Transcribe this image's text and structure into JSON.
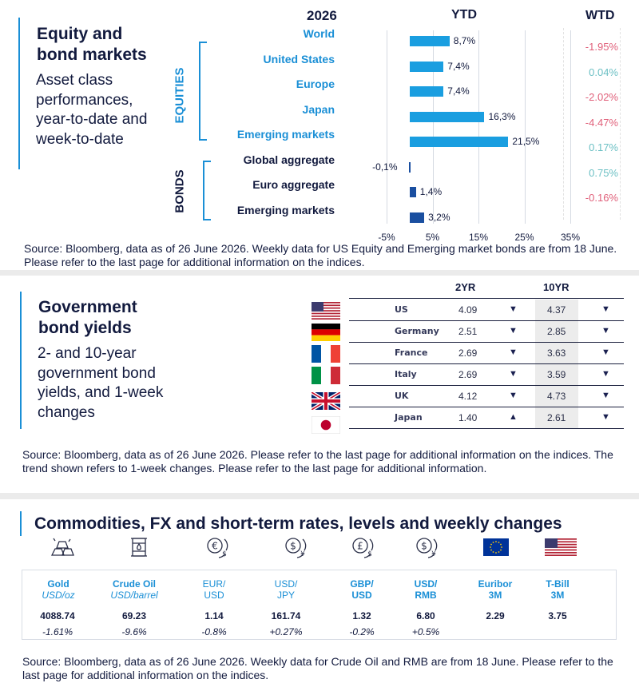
{
  "equity": {
    "title_line1": "Equity and",
    "title_line2": "bond markets",
    "subtitle_lines": [
      "Asset class",
      "performances,",
      "year-to-date and",
      "week-to-date"
    ],
    "year_label": "2026",
    "ytd_label": "YTD",
    "wtd_label": "WTD",
    "equities_label": "EQUITIES",
    "bonds_label": "BONDS",
    "rows": [
      {
        "label": "World",
        "group": "equities",
        "ytd": 8.7,
        "ytd_text": "8,7%",
        "wtd": "-1.95%",
        "wtd_color": "#e0607a"
      },
      {
        "label": "United States",
        "group": "equities",
        "ytd": 7.4,
        "ytd_text": "7,4%",
        "wtd": "0.04%",
        "wtd_color": "#6cc0c4"
      },
      {
        "label": "Europe",
        "group": "equities",
        "ytd": 7.4,
        "ytd_text": "7,4%",
        "wtd": "-2.02%",
        "wtd_color": "#e0607a"
      },
      {
        "label": "Japan",
        "group": "equities",
        "ytd": 16.3,
        "ytd_text": "16,3%",
        "wtd": "-4.47%",
        "wtd_color": "#e0607a"
      },
      {
        "label": "Emerging  markets",
        "group": "equities",
        "ytd": 21.5,
        "ytd_text": "21,5%",
        "wtd": "0.17%",
        "wtd_color": "#6cc0c4"
      },
      {
        "label": "Global  aggregate",
        "group": "bonds",
        "ytd": -0.1,
        "ytd_text": "-0,1%",
        "wtd": "0.75%",
        "wtd_color": "#6cc0c4"
      },
      {
        "label": "Euro  aggregate",
        "group": "bonds",
        "ytd": 1.4,
        "ytd_text": "1,4%",
        "wtd": "-0.16%",
        "wtd_color": "#e0607a"
      },
      {
        "label": "Emerging  markets",
        "group": "bonds",
        "ytd": 3.2,
        "ytd_text": "3,2%",
        "wtd": "",
        "wtd_color": "#e0607a"
      }
    ],
    "axis_ticks": [
      "-5%",
      "5%",
      "15%",
      "25%",
      "35%"
    ],
    "source": "Source: Bloomberg, data as of 26 June 2026. Weekly data for US Equity and Emerging market bonds are from 18 June. Please refer to the last page for additional information on the indices."
  },
  "chart_data": {
    "type": "bar",
    "orientation": "horizontal",
    "categories": [
      "World",
      "United States",
      "Europe",
      "Japan",
      "Emerging  markets",
      "Global  aggregate",
      "Euro  aggregate",
      "Emerging  markets"
    ],
    "values": [
      8.7,
      7.4,
      7.4,
      16.3,
      21.5,
      -0.1,
      1.4,
      3.2
    ],
    "title": "YTD",
    "xlim": [
      -5,
      35
    ],
    "xticks": [
      "-5%",
      "5%",
      "15%",
      "25%",
      "35%"
    ],
    "grid": true,
    "bar_colors": [
      "#1a9ee0",
      "#1a9ee0",
      "#1a9ee0",
      "#1a9ee0",
      "#1a9ee0",
      "#1a4fa0",
      "#1a4fa0",
      "#1a4fa0"
    ]
  },
  "yields": {
    "title_line1": "Government",
    "title_line2": "bond yields",
    "subtitle_lines": [
      "2- and 10-year",
      "government bond",
      "yields, and 1-week",
      "changes"
    ],
    "col_2yr": "2YR",
    "col_10yr": "10YR",
    "rows": [
      {
        "country": "US",
        "flag": "us",
        "y2": "4.09",
        "t2": "▼",
        "y10": "4.37",
        "t10": "▼"
      },
      {
        "country": "Germany",
        "flag": "de",
        "y2": "2.51",
        "t2": "▼",
        "y10": "2.85",
        "t10": "▼"
      },
      {
        "country": "France",
        "flag": "fr",
        "y2": "2.69",
        "t2": "▼",
        "y10": "3.63",
        "t10": "▼"
      },
      {
        "country": "Italy",
        "flag": "it",
        "y2": "2.69",
        "t2": "▼",
        "y10": "3.59",
        "t10": "▼"
      },
      {
        "country": "UK",
        "flag": "uk",
        "y2": "4.12",
        "t2": "▼",
        "y10": "4.73",
        "t10": "▼"
      },
      {
        "country": "Japan",
        "flag": "jp",
        "y2": "1.40",
        "t2": "▲",
        "y10": "2.61",
        "t10": "▼"
      }
    ],
    "source": "Source: Bloomberg, data as of 26 June 2026. Please refer to the last page for additional information on the indices. The trend shown refers to 1-week changes. Please refer to the last page for additional information."
  },
  "commodities": {
    "title": "Commodities, FX and short-term rates, levels and weekly changes",
    "items": [
      {
        "name": "Gold",
        "unit": "USD/oz",
        "value": "4088.74",
        "change": "-1.61%",
        "icon": "gold-bars-icon"
      },
      {
        "name": "Crude Oil",
        "unit": "USD/barrel",
        "value": "69.23",
        "change": "-9.6%",
        "icon": "oil-barrel-icon"
      },
      {
        "name": "EUR/",
        "name2": "USD",
        "value": "1.14",
        "change": "-0.8%",
        "icon": "euro-dollar-exchange-icon"
      },
      {
        "name": "USD/",
        "name2": "JPY",
        "value": "161.74",
        "change": "+0.27%",
        "icon": "dollar-yen-exchange-icon"
      },
      {
        "name": "GBP/",
        "name2": "USD",
        "value": "1.32",
        "change": "-0.2%",
        "icon": "pound-dollar-exchange-icon"
      },
      {
        "name": "USD/",
        "name2": "RMB",
        "value": "6.80",
        "change": "+0.5%",
        "icon": "dollar-yuan-exchange-icon"
      },
      {
        "name": "Euribor",
        "name2": "3M",
        "value": "2.29",
        "change": "",
        "icon": "eu-flag-icon"
      },
      {
        "name": "T-Bill",
        "name2": "3M",
        "value": "3.75",
        "change": "",
        "icon": "us-flag-icon"
      }
    ],
    "source": "Source: Bloomberg, data as of 26 June 2026. Weekly data for Crude Oil and RMB are from 18 June. Please refer to the last page for additional information on the indices."
  }
}
